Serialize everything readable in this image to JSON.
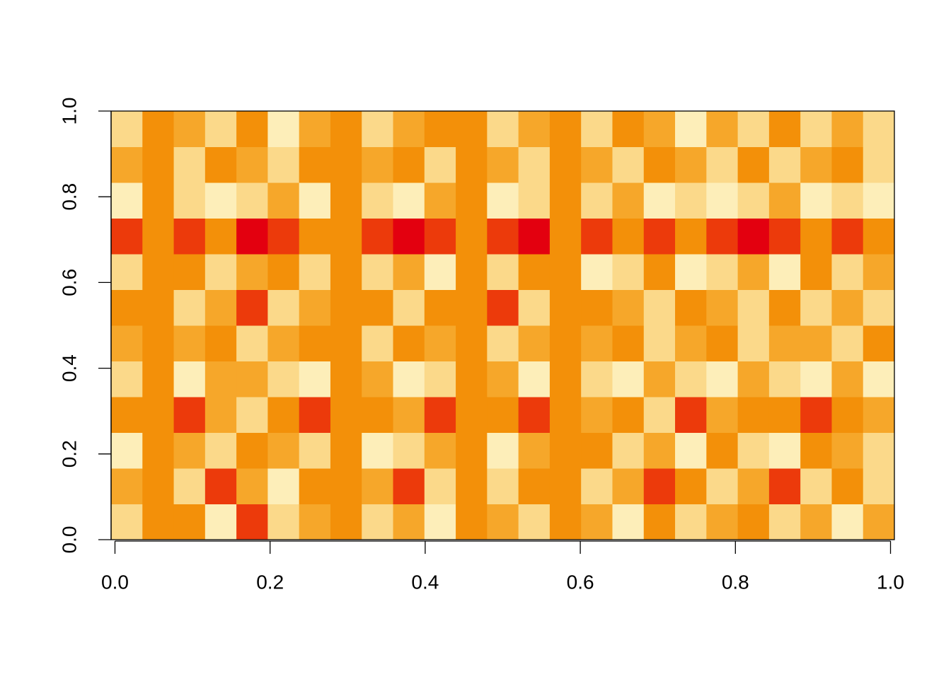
{
  "chart_data": {
    "type": "heatmap",
    "xlim": [
      -0.005,
      1.005
    ],
    "ylim": [
      0,
      1
    ],
    "xticks": [
      {
        "value": 0,
        "label": "0.0"
      },
      {
        "value": 0.2,
        "label": "0.2"
      },
      {
        "value": 0.4,
        "label": "0.4"
      },
      {
        "value": 0.6,
        "label": "0.6"
      },
      {
        "value": 0.8,
        "label": "0.8"
      },
      {
        "value": 1,
        "label": "1.0"
      }
    ],
    "yticks": [
      {
        "value": 0,
        "label": "0.0"
      },
      {
        "value": 0.2,
        "label": "0.2"
      },
      {
        "value": 0.4,
        "label": "0.4"
      },
      {
        "value": 0.6,
        "label": "0.6"
      },
      {
        "value": 0.8,
        "label": "0.8"
      },
      {
        "value": 1,
        "label": "1.0"
      }
    ],
    "colors": [
      "#e3000f",
      "#ec3a0b",
      "#f26a07",
      "#f39009",
      "#f6a72a",
      "#f9c15a",
      "#fbd98a",
      "#fdeeb9"
    ],
    "z": [
      [
        0.6,
        0.4,
        0.4,
        0.7,
        0.3,
        0.6,
        0.5,
        0.4,
        0.6,
        0.5,
        0.7,
        0.4,
        0.5,
        0.6,
        0.4,
        0.5,
        0.7,
        0.4,
        0.6,
        0.5,
        0.4,
        0.6,
        0.5,
        0.7,
        0.5
      ],
      [
        0.5,
        0.4,
        0.6,
        0.3,
        0.5,
        0.7,
        0.4,
        0.4,
        0.5,
        0.3,
        0.6,
        0.4,
        0.6,
        0.4,
        0.4,
        0.6,
        0.5,
        0.3,
        0.4,
        0.6,
        0.5,
        0.3,
        0.6,
        0.4,
        0.6
      ],
      [
        0.7,
        0.4,
        0.5,
        0.6,
        0.4,
        0.5,
        0.6,
        0.4,
        0.7,
        0.6,
        0.5,
        0.4,
        0.7,
        0.5,
        0.4,
        0.4,
        0.6,
        0.5,
        0.7,
        0.4,
        0.6,
        0.7,
        0.4,
        0.5,
        0.6
      ],
      [
        0.4,
        0.4,
        0.3,
        0.5,
        0.6,
        0.4,
        0.3,
        0.4,
        0.4,
        0.5,
        0.3,
        0.4,
        0.4,
        0.3,
        0.4,
        0.5,
        0.4,
        0.6,
        0.3,
        0.5,
        0.4,
        0.4,
        0.3,
        0.4,
        0.5
      ],
      [
        0.6,
        0.4,
        0.7,
        0.5,
        0.5,
        0.6,
        0.7,
        0.4,
        0.5,
        0.7,
        0.6,
        0.4,
        0.5,
        0.7,
        0.4,
        0.6,
        0.7,
        0.5,
        0.6,
        0.7,
        0.5,
        0.6,
        0.7,
        0.5,
        0.7
      ],
      [
        0.5,
        0.4,
        0.5,
        0.4,
        0.6,
        0.5,
        0.4,
        0.4,
        0.6,
        0.4,
        0.5,
        0.4,
        0.6,
        0.5,
        0.4,
        0.5,
        0.4,
        0.6,
        0.5,
        0.4,
        0.6,
        0.5,
        0.5,
        0.6,
        0.4
      ],
      [
        0.4,
        0.4,
        0.6,
        0.5,
        0.3,
        0.6,
        0.5,
        0.4,
        0.4,
        0.6,
        0.4,
        0.4,
        0.3,
        0.6,
        0.4,
        0.4,
        0.5,
        0.6,
        0.4,
        0.5,
        0.6,
        0.4,
        0.6,
        0.5,
        0.6
      ],
      [
        0.6,
        0.4,
        0.4,
        0.6,
        0.5,
        0.4,
        0.6,
        0.4,
        0.6,
        0.5,
        0.7,
        0.4,
        0.6,
        0.4,
        0.4,
        0.7,
        0.6,
        0.4,
        0.7,
        0.6,
        0.5,
        0.7,
        0.4,
        0.6,
        0.5
      ],
      [
        0.3,
        0.4,
        0.3,
        0.4,
        0.2,
        0.3,
        0.4,
        0.4,
        0.3,
        0.2,
        0.3,
        0.4,
        0.3,
        0.2,
        0.4,
        0.3,
        0.4,
        0.3,
        0.4,
        0.3,
        0.2,
        0.3,
        0.4,
        0.3,
        0.4
      ],
      [
        0.7,
        0.4,
        0.6,
        0.7,
        0.6,
        0.5,
        0.7,
        0.4,
        0.6,
        0.7,
        0.5,
        0.4,
        0.7,
        0.6,
        0.4,
        0.6,
        0.5,
        0.7,
        0.6,
        0.7,
        0.6,
        0.5,
        0.7,
        0.6,
        0.7
      ],
      [
        0.5,
        0.4,
        0.6,
        0.4,
        0.5,
        0.6,
        0.4,
        0.4,
        0.5,
        0.4,
        0.6,
        0.4,
        0.5,
        0.6,
        0.4,
        0.5,
        0.6,
        0.4,
        0.5,
        0.6,
        0.4,
        0.6,
        0.5,
        0.4,
        0.6
      ],
      [
        0.6,
        0.4,
        0.5,
        0.6,
        0.4,
        0.7,
        0.5,
        0.4,
        0.6,
        0.5,
        0.4,
        0.4,
        0.6,
        0.5,
        0.4,
        0.6,
        0.4,
        0.5,
        0.7,
        0.5,
        0.6,
        0.4,
        0.6,
        0.5,
        0.6
      ]
    ]
  }
}
